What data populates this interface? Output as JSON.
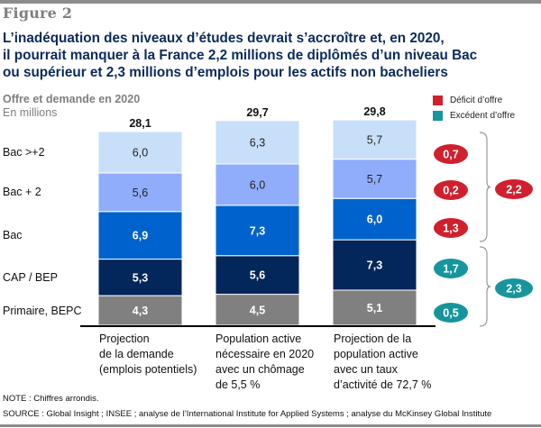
{
  "figure_label": "Figure 2",
  "title_lines": [
    "L’inadéquation des niveaux d’études devrait s’accroître et, en 2020,",
    "il pourrait manquer à la France 2,2 millions de diplômés d’un niveau Bac",
    "ou supérieur et 2,3 millions d’emplois pour les actifs non bacheliers"
  ],
  "subtitle": "Offre et demande en 2020",
  "unit": "En millions",
  "legend": [
    {
      "label": "Déficit d’offre",
      "color": "#d0202e"
    },
    {
      "label": "Excédent d’offre",
      "color": "#17959c"
    }
  ],
  "note": "NOTE : Chiffres arrondis.",
  "source": "SOURCE : Global Insight ; INSEE ; analyse de l’International Institute for Applied Systems ; analyse du McKinsey Global Institute",
  "chart_data": {
    "type": "bar",
    "stacked": true,
    "title": "Offre et demande en 2020",
    "ylabel": "En millions",
    "categories": [
      "Projection\nde la demande\n(emplois potentiels)",
      "Population active\nnécessaire en 2020\navec un chômage\nde 5,5 %",
      "Projection de la\npopulation active\navec un taux\nd’activité de 72,7 %"
    ],
    "totals": [
      "28,1",
      "29,7",
      "29,8"
    ],
    "series": [
      {
        "name": "Primaire, BEPC",
        "color": "#808080",
        "text_color": "#ffffff",
        "values": [
          4.3,
          4.5,
          5.1
        ],
        "labels": [
          "4,3",
          "4,5",
          "5,1"
        ]
      },
      {
        "name": "CAP / BEP",
        "color": "#03265b",
        "text_color": "#ffffff",
        "values": [
          5.3,
          5.6,
          7.3
        ],
        "labels": [
          "5,3",
          "5,6",
          "7,3"
        ]
      },
      {
        "name": "Bac",
        "color": "#0062cc",
        "text_color": "#ffffff",
        "values": [
          6.9,
          7.3,
          6.0
        ],
        "labels": [
          "6,9",
          "7,3",
          "6,0"
        ]
      },
      {
        "name": "Bac + 2",
        "color": "#8fadfb",
        "text_color": "#222222",
        "values": [
          5.6,
          6.0,
          5.7
        ],
        "labels": [
          "5,6",
          "6,0",
          "5,7"
        ]
      },
      {
        "name": "Bac >+2",
        "color": "#c8dffa",
        "text_color": "#222222",
        "values": [
          6.0,
          6.3,
          5.7
        ],
        "labels": [
          "6,0",
          "6,3",
          "5,7"
        ]
      }
    ],
    "gaps": [
      {
        "level": "Bac >+2",
        "value": "0,7",
        "type": "deficit"
      },
      {
        "level": "Bac + 2",
        "value": "0,2",
        "type": "deficit"
      },
      {
        "level": "Bac",
        "value": "1,3",
        "type": "deficit"
      },
      {
        "level": "CAP / BEP",
        "value": "1,7",
        "type": "surplus"
      },
      {
        "level": "Primaire, BEPC",
        "value": "0,5",
        "type": "surplus"
      }
    ],
    "group_totals": [
      {
        "levels": [
          "Bac >+2",
          "Bac + 2",
          "Bac"
        ],
        "value": "2,2",
        "type": "deficit"
      },
      {
        "levels": [
          "CAP / BEP",
          "Primaire, BEPC"
        ],
        "value": "2,3",
        "type": "surplus"
      }
    ],
    "grid": false,
    "legend_position": "top-right"
  }
}
